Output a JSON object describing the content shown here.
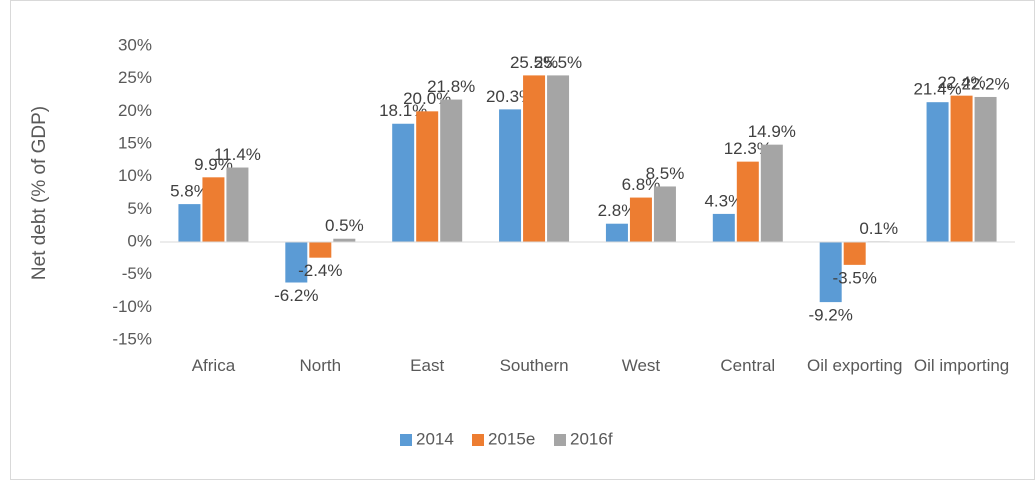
{
  "chart_data": {
    "type": "bar",
    "y_label": "Net debt (% of GDP)",
    "categories": [
      "Africa",
      "North",
      "East",
      "Southern",
      "West",
      "Central",
      "Oil exporting",
      "Oil importing"
    ],
    "series": [
      {
        "name": "2014",
        "color": "#5b9bd5",
        "values": [
          5.8,
          -6.2,
          18.1,
          20.3,
          2.8,
          4.3,
          -9.2,
          21.4
        ],
        "value_labels": [
          "5.8%",
          "-6.2%",
          "18.1%",
          "20.3%",
          "2.8%",
          "4.3%",
          "-9.2%",
          "21.4%"
        ]
      },
      {
        "name": "2015e",
        "color": "#ed7d31",
        "values": [
          9.9,
          -2.4,
          20.0,
          25.5,
          6.8,
          12.3,
          -3.5,
          22.4
        ],
        "value_labels": [
          "9.9%",
          "-2.4%",
          "20.0%",
          "25.5%",
          "6.8%",
          "12.3%",
          "-3.5%",
          "22.4%"
        ]
      },
      {
        "name": "2016f",
        "color": "#a5a5a5",
        "values": [
          11.4,
          0.5,
          21.8,
          25.5,
          8.5,
          14.9,
          0.1,
          22.2
        ],
        "value_labels": [
          "11.4%",
          "0.5%",
          "21.8%",
          "25.5%",
          "8.5%",
          "14.9%",
          "0.1%",
          "22.2%"
        ]
      }
    ],
    "ylim": [
      -15,
      30
    ],
    "yticks": [
      {
        "value": -15,
        "label": "-15%"
      },
      {
        "value": -10,
        "label": "-10%"
      },
      {
        "value": -5,
        "label": "-5%"
      },
      {
        "value": 0,
        "label": "0%"
      },
      {
        "value": 5,
        "label": "5%"
      },
      {
        "value": 10,
        "label": "10%"
      },
      {
        "value": 15,
        "label": "15%"
      },
      {
        "value": 20,
        "label": "20%"
      },
      {
        "value": 25,
        "label": "25%"
      },
      {
        "value": 30,
        "label": "30%"
      }
    ],
    "grid": false,
    "legend": "bottom"
  }
}
